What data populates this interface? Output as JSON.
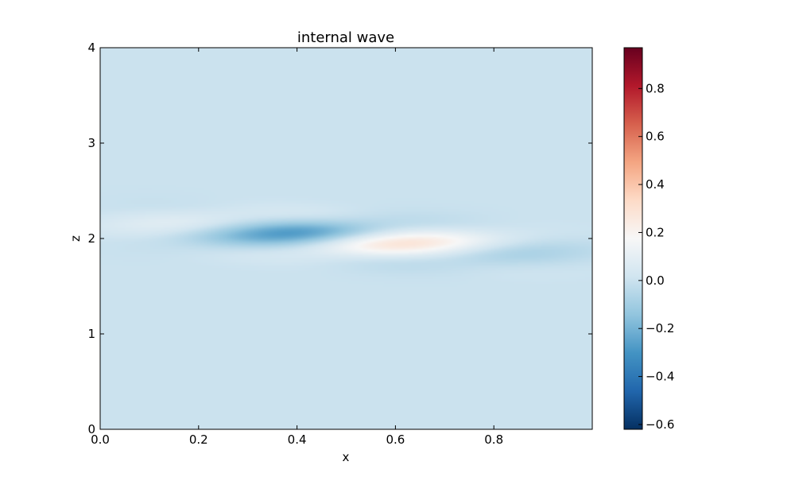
{
  "chart_data": {
    "type": "heatmap",
    "title": "internal wave",
    "xlabel": "x",
    "ylabel": "z",
    "xlim": [
      0,
      1
    ],
    "ylim": [
      0,
      4
    ],
    "x_ticks": [
      {
        "value": 0.0,
        "label": "0.0"
      },
      {
        "value": 0.2,
        "label": "0.2"
      },
      {
        "value": 0.4,
        "label": "0.4"
      },
      {
        "value": 0.6,
        "label": "0.6"
      },
      {
        "value": 0.8,
        "label": "0.8"
      }
    ],
    "y_ticks": [
      {
        "value": 0,
        "label": "0"
      },
      {
        "value": 1,
        "label": "1"
      },
      {
        "value": 2,
        "label": "2"
      },
      {
        "value": 3,
        "label": "3"
      },
      {
        "value": 4,
        "label": "4"
      }
    ],
    "colorbar": {
      "colormap": "RdBu_r",
      "vmin": -0.62,
      "vmax": 0.97,
      "ticks": [
        {
          "value": 0.8,
          "label": "0.8"
        },
        {
          "value": 0.6,
          "label": "0.6"
        },
        {
          "value": 0.4,
          "label": "0.4"
        },
        {
          "value": 0.2,
          "label": "0.2"
        },
        {
          "value": 0.0,
          "label": "0.0"
        },
        {
          "value": -0.2,
          "label": "−0.2"
        },
        {
          "value": -0.4,
          "label": "−0.4"
        },
        {
          "value": -0.6,
          "label": "−0.6"
        }
      ]
    },
    "field": {
      "background": 0.0,
      "wave_packet": {
        "center_x": 0.5,
        "center_z": 2.0,
        "slope_dz_dx": -0.3,
        "extent_x": 0.42,
        "extent_z": 0.18,
        "wavelength_x": 0.62,
        "amplitude": 0.32
      }
    },
    "grid": false
  }
}
